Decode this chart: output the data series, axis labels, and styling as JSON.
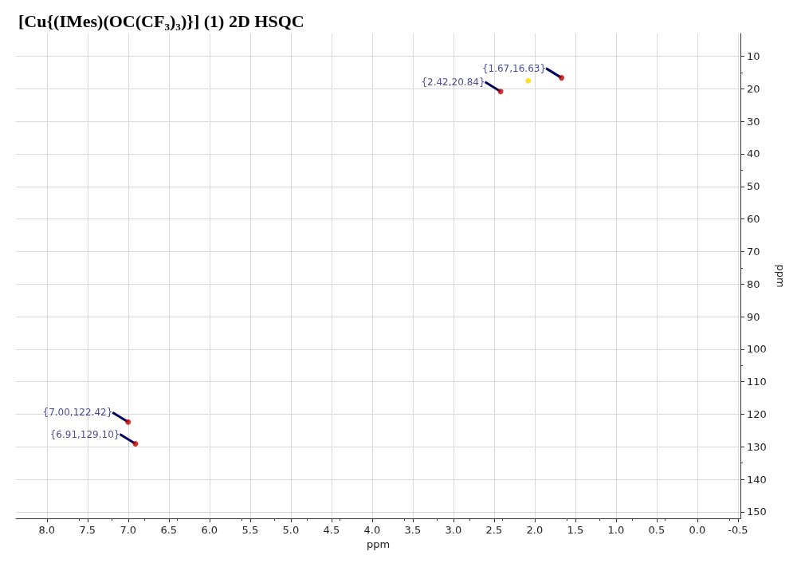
{
  "chart_data": {
    "type": "scatter",
    "title": "[Cu{(IMes)(OC(CF₃)₃)}] (1) 2D HSQC",
    "xlabel": "ppm",
    "ylabel": "ppm",
    "series": [
      {
        "color": "#c00000",
        "x": [
          1.67,
          2.42,
          7.0,
          6.91
        ],
        "values": [
          16.63,
          20.84,
          122.42,
          129.1
        ]
      },
      {
        "color": "#ffd700",
        "x": [
          2.08
        ],
        "values": [
          17.5
        ]
      }
    ],
    "annotations": [
      {
        "text": "{1.67,16.63}",
        "x": 1.67,
        "y": 16.63
      },
      {
        "text": "{2.42,20.84}",
        "x": 2.42,
        "y": 20.84
      },
      {
        "text": "{7.00,122.42}",
        "x": 7.0,
        "y": 122.42
      },
      {
        "text": "{6.91,129.10}",
        "x": 6.91,
        "y": 129.1
      }
    ],
    "xlim": [
      8.38,
      -0.53
    ],
    "ylim": [
      152,
      3
    ],
    "xticks": [
      {
        "value": 8,
        "label": "8.0"
      },
      {
        "value": 7.5,
        "label": "7.5"
      },
      {
        "value": 7,
        "label": "7.0"
      },
      {
        "value": 6.5,
        "label": "6.5"
      },
      {
        "value": 6,
        "label": "6.0"
      },
      {
        "value": 5.5,
        "label": "5.5"
      },
      {
        "value": 5,
        "label": "5.0"
      },
      {
        "value": 4.5,
        "label": "4.5"
      },
      {
        "value": 4,
        "label": "4.0"
      },
      {
        "value": 3.5,
        "label": "3.5"
      },
      {
        "value": 3,
        "label": "3.0"
      },
      {
        "value": 2.5,
        "label": "2.5"
      },
      {
        "value": 2,
        "label": "2.0"
      },
      {
        "value": 1.5,
        "label": "1.5"
      },
      {
        "value": 1,
        "label": "1.0"
      },
      {
        "value": 0.5,
        "label": "0.5"
      },
      {
        "value": 0,
        "label": "0.0"
      },
      {
        "value": -0.5,
        "label": "-0.5"
      }
    ],
    "yticks": [
      10,
      20,
      30,
      40,
      50,
      60,
      70,
      80,
      90,
      100,
      110,
      120,
      130,
      140,
      150
    ],
    "grid": true,
    "marker": "circle",
    "legend": false
  }
}
